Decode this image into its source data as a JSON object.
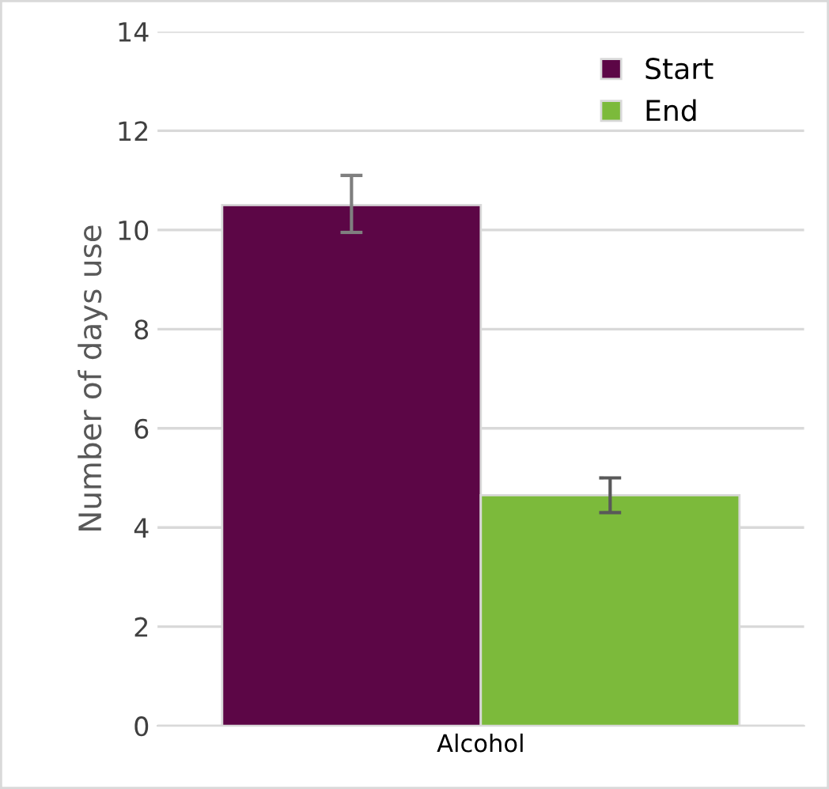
{
  "chart_data": {
    "type": "bar",
    "ylabel": "Number of days use",
    "categories": [
      "Alcohol"
    ],
    "series": [
      {
        "name": "Start",
        "color": "#5c0646",
        "values": [
          10.5
        ],
        "errors": [
          [
            9.95,
            11.1
          ]
        ]
      },
      {
        "name": "End",
        "color": "#7cba3b",
        "values": [
          4.65
        ],
        "errors": [
          [
            4.3,
            5.0
          ]
        ]
      }
    ],
    "ylim": [
      0,
      14
    ],
    "yticks": [
      0,
      2,
      4,
      6,
      8,
      10,
      12,
      14
    ],
    "grid": "y",
    "legend": "top right"
  }
}
